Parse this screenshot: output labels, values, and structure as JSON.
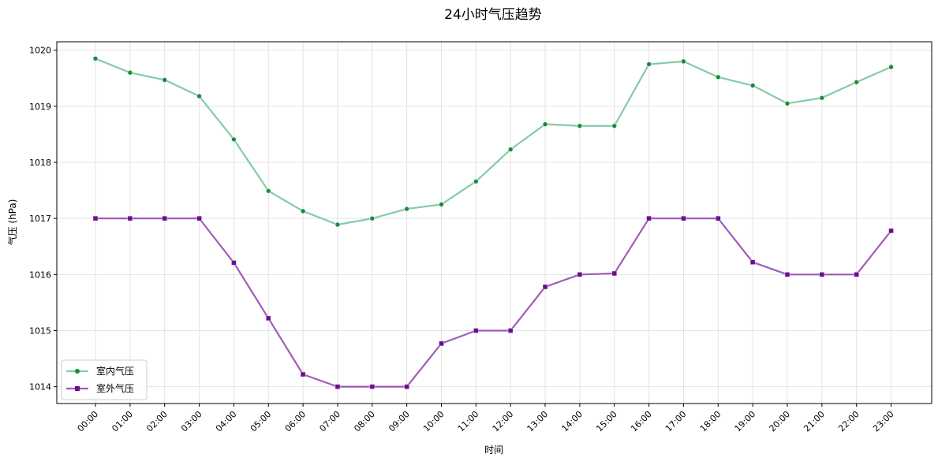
{
  "chart_data": {
    "type": "line",
    "title": "24小时气压趋势",
    "xlabel": "时间",
    "ylabel": "气压 (hPa)",
    "ylim": [
      1013.7,
      1020.15
    ],
    "yticks": [
      1014,
      1015,
      1016,
      1017,
      1018,
      1019,
      1020
    ],
    "grid": true,
    "legend_position": "bottom-left",
    "x": [
      "00:00",
      "01:00",
      "02:00",
      "03:00",
      "04:00",
      "05:00",
      "06:00",
      "07:00",
      "08:00",
      "09:00",
      "10:00",
      "11:00",
      "12:00",
      "13:00",
      "14:00",
      "15:00",
      "16:00",
      "17:00",
      "18:00",
      "19:00",
      "20:00",
      "21:00",
      "22:00",
      "23:00"
    ],
    "series": [
      {
        "name": "室内气压",
        "color": "#66bb99",
        "marker_color": "#1a8a3a",
        "marker": "circle",
        "values": [
          1019.85,
          1019.6,
          1019.47,
          1019.18,
          1018.41,
          1017.49,
          1017.13,
          1016.89,
          1017.0,
          1017.17,
          1017.25,
          1017.66,
          1018.23,
          1018.68,
          1018.65,
          1018.65,
          1019.75,
          1019.8,
          1019.52,
          1019.37,
          1019.05,
          1019.15,
          1019.43,
          1019.7
        ]
      },
      {
        "name": "室外气压",
        "color": "#8833aa",
        "marker_color": "#6a0d91",
        "marker": "square",
        "values": [
          1017.0,
          1017.0,
          1017.0,
          1017.0,
          1016.21,
          1015.22,
          1014.22,
          1014.0,
          1014.0,
          1014.0,
          1014.77,
          1015.0,
          1015.0,
          1015.78,
          1016.0,
          1016.02,
          1017.0,
          1017.0,
          1017.0,
          1016.22,
          1016.0,
          1016.0,
          1016.0,
          1016.78
        ]
      }
    ]
  }
}
